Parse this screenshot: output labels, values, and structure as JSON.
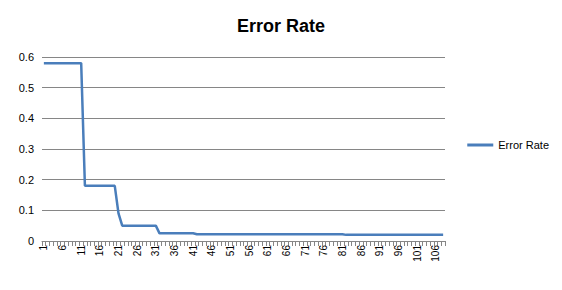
{
  "chart_data": {
    "type": "line",
    "title": "Error Rate",
    "categories": [
      1,
      null,
      null,
      null,
      null,
      6,
      null,
      null,
      null,
      null,
      11,
      null,
      null,
      null,
      null,
      16,
      null,
      null,
      null,
      null,
      21,
      null,
      null,
      null,
      null,
      26,
      null,
      null,
      null,
      null,
      31,
      null,
      null,
      null,
      null,
      36,
      null,
      null,
      null,
      null,
      41,
      null,
      null,
      null,
      null,
      46,
      null,
      null,
      null,
      null,
      51,
      null,
      null,
      null,
      null,
      56,
      null,
      null,
      null,
      null,
      61,
      null,
      null,
      null,
      null,
      66,
      null,
      null,
      null,
      null,
      71,
      null,
      null,
      null,
      null,
      76,
      null,
      null,
      null,
      null,
      81,
      null,
      null,
      null,
      null,
      86,
      null,
      null,
      null,
      null,
      91,
      null,
      null,
      null,
      null,
      96,
      null,
      null,
      null,
      null,
      101,
      null,
      null,
      null,
      null,
      106,
      null,
      null
    ],
    "series": [
      {
        "name": "Error Rate",
        "color": "#4a7ebb",
        "values": [
          0.58,
          0.58,
          0.58,
          0.58,
          0.58,
          0.58,
          0.58,
          0.58,
          0.58,
          0.58,
          0.58,
          0.18,
          0.18,
          0.18,
          0.18,
          0.18,
          0.18,
          0.18,
          0.18,
          0.18,
          0.09,
          0.05,
          0.05,
          0.05,
          0.05,
          0.05,
          0.05,
          0.05,
          0.05,
          0.05,
          0.05,
          0.025,
          0.025,
          0.025,
          0.025,
          0.025,
          0.025,
          0.025,
          0.025,
          0.025,
          0.025,
          0.022,
          0.022,
          0.022,
          0.022,
          0.022,
          0.022,
          0.022,
          0.022,
          0.022,
          0.022,
          0.022,
          0.022,
          0.022,
          0.022,
          0.022,
          0.022,
          0.022,
          0.022,
          0.022,
          0.022,
          0.022,
          0.022,
          0.022,
          0.022,
          0.022,
          0.022,
          0.022,
          0.022,
          0.022,
          0.022,
          0.022,
          0.022,
          0.022,
          0.022,
          0.022,
          0.022,
          0.022,
          0.022,
          0.022,
          0.022,
          0.02,
          0.02,
          0.02,
          0.02,
          0.02,
          0.02,
          0.02,
          0.02,
          0.02,
          0.02,
          0.02,
          0.02,
          0.02,
          0.02,
          0.02,
          0.02,
          0.02,
          0.02,
          0.02,
          0.02,
          0.02,
          0.02,
          0.02,
          0.02,
          0.02,
          0.02,
          0.02
        ]
      }
    ],
    "ylim": [
      0,
      0.6
    ],
    "yticks": [
      0,
      0.1,
      0.2,
      0.3,
      0.4,
      0.5,
      0.6
    ],
    "grid": true,
    "legend": "right"
  }
}
